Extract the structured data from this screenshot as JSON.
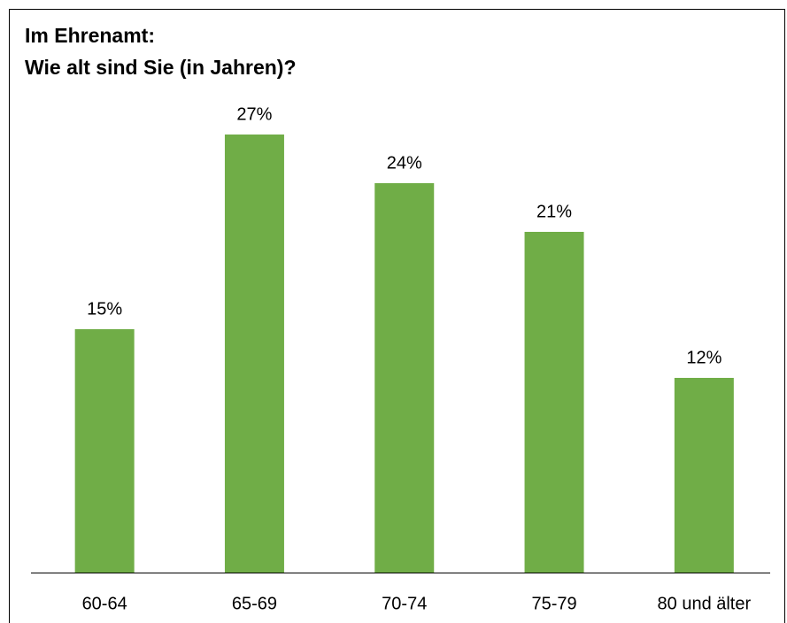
{
  "chart_data": {
    "type": "bar",
    "title": [
      "Im Ehrenamt:",
      "Wie alt sind Sie (in Jahren)?"
    ],
    "categories": [
      "60-64",
      "65-69",
      "70-74",
      "75-79",
      "80 und älter"
    ],
    "values": [
      15,
      27,
      24,
      21,
      12
    ],
    "value_labels": [
      "15%",
      "27%",
      "24%",
      "21%",
      "12%"
    ],
    "color": "#70ad47",
    "ylim": [
      0,
      30
    ]
  }
}
